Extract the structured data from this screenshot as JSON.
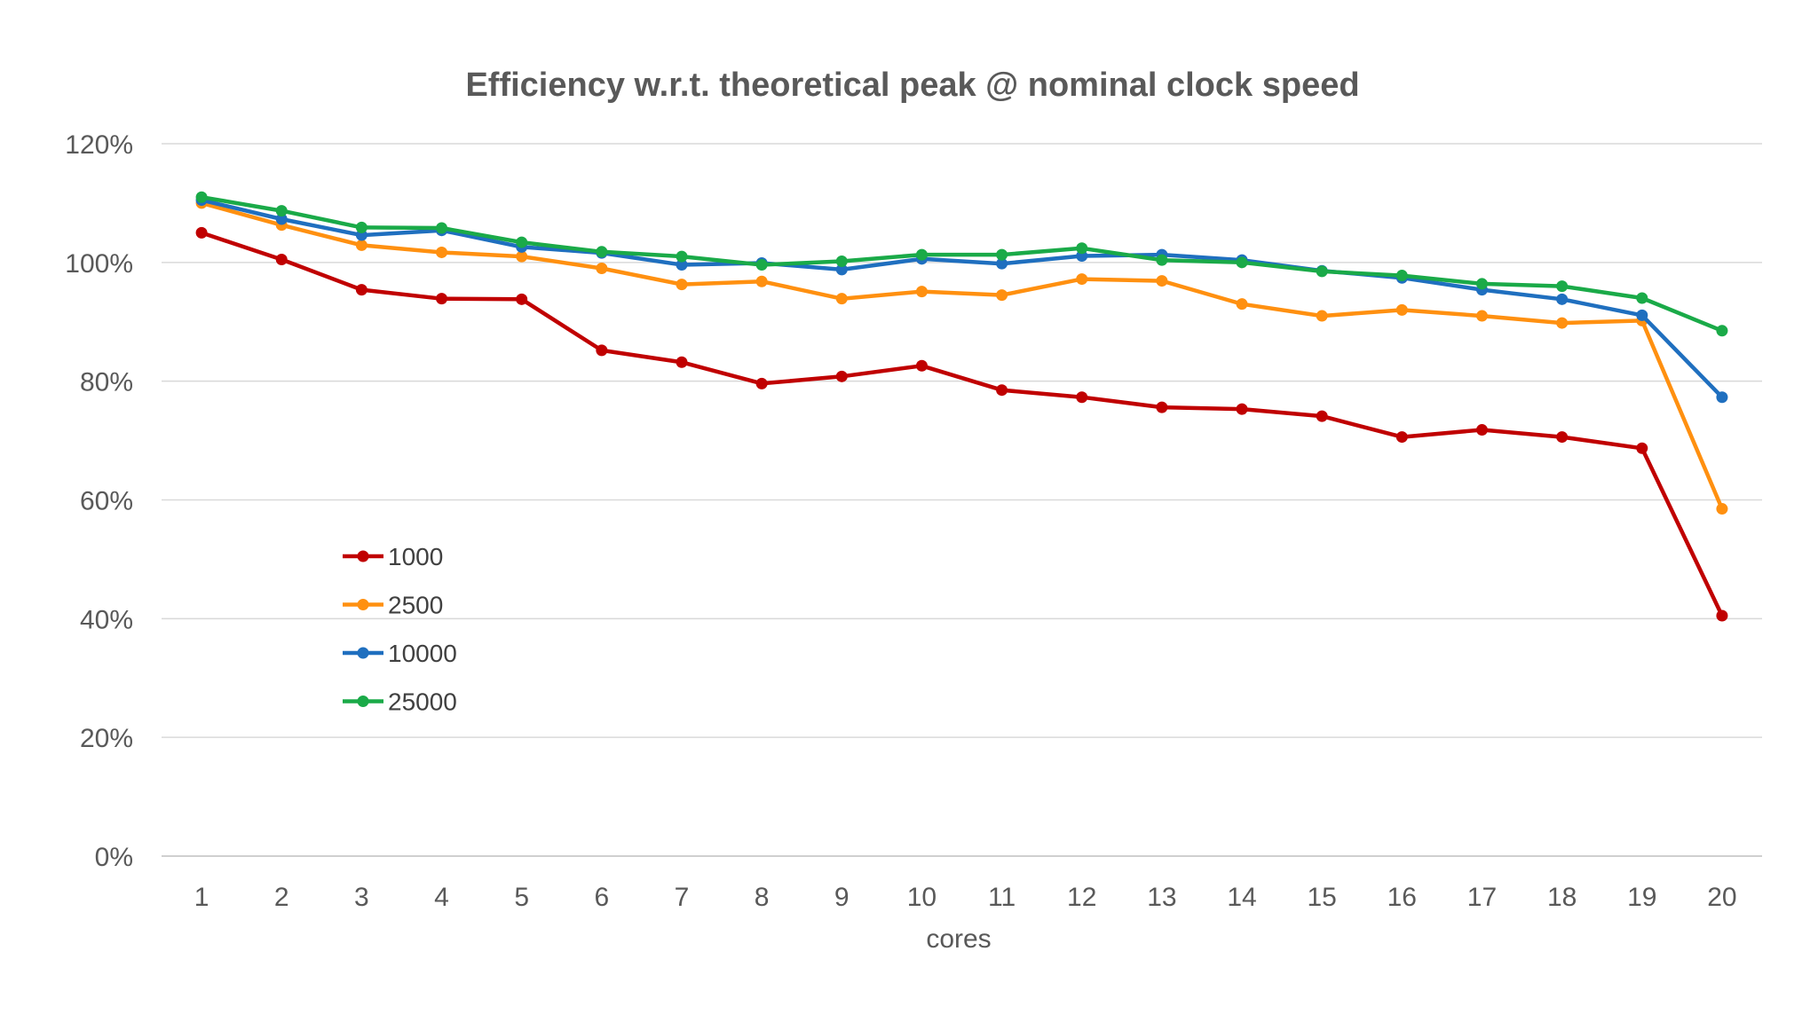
{
  "chart_data": {
    "type": "line",
    "title": "Efficiency w.r.t. theoretical peak @ nominal clock speed",
    "xlabel": "cores",
    "ylabel": "",
    "x": [
      1,
      2,
      3,
      4,
      5,
      6,
      7,
      8,
      9,
      10,
      11,
      12,
      13,
      14,
      15,
      16,
      17,
      18,
      19,
      20
    ],
    "x_tick_labels": [
      "1",
      "2",
      "3",
      "4",
      "5",
      "6",
      "7",
      "8",
      "9",
      "10",
      "11",
      "12",
      "13",
      "14",
      "15",
      "16",
      "17",
      "18",
      "19",
      "20"
    ],
    "ylim": [
      0,
      120
    ],
    "y_tick_labels": [
      "0%",
      "20%",
      "40%",
      "60%",
      "80%",
      "100%",
      "120%"
    ],
    "y_unit": "%",
    "grid": "horizontal",
    "legend_placement": "center-left",
    "series": [
      {
        "name": "1000",
        "color": "#C00000",
        "values": [
          105,
          100.5,
          95.4,
          93.9,
          93.8,
          85.2,
          83.2,
          79.6,
          80.8,
          82.6,
          78.5,
          77.3,
          75.6,
          75.3,
          74.1,
          70.6,
          71.8,
          70.6,
          68.7,
          40.5
        ]
      },
      {
        "name": "2500",
        "color": "#FF9010",
        "values": [
          110,
          106.3,
          102.9,
          101.7,
          101.0,
          99.0,
          96.3,
          96.8,
          93.9,
          95.1,
          94.5,
          97.2,
          96.9,
          93.0,
          91.0,
          92.0,
          91.0,
          89.8,
          90.2,
          58.5
        ]
      },
      {
        "name": "10000",
        "color": "#1F6FBF",
        "values": [
          110.5,
          107.3,
          104.6,
          105.4,
          102.6,
          101.6,
          99.6,
          99.9,
          98.8,
          100.6,
          99.8,
          101.1,
          101.3,
          100.4,
          98.6,
          97.4,
          95.4,
          93.8,
          91.1,
          77.3
        ]
      },
      {
        "name": "25000",
        "color": "#1AAA48",
        "values": [
          111,
          108.7,
          105.9,
          105.8,
          103.4,
          101.8,
          101.0,
          99.6,
          100.2,
          101.3,
          101.3,
          102.4,
          100.4,
          100.0,
          98.5,
          97.8,
          96.4,
          96.0,
          94.0,
          88.5
        ]
      }
    ]
  }
}
